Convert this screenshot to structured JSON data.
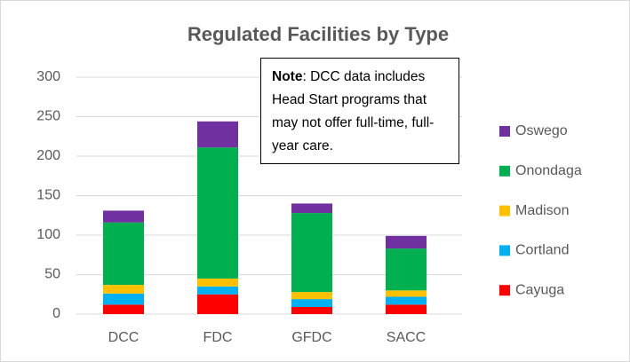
{
  "chart_data": {
    "type": "stacked_bar",
    "title": "Regulated Facilities by Type",
    "categories": [
      "DCC",
      "FDC",
      "GFDC",
      "SACC"
    ],
    "series": [
      {
        "name": "Cayuga",
        "color": "#ff0000",
        "values": [
          12,
          25,
          9,
          12
        ]
      },
      {
        "name": "Cortland",
        "color": "#00b0f0",
        "values": [
          14,
          10,
          10,
          10
        ]
      },
      {
        "name": "Madison",
        "color": "#ffc000",
        "values": [
          11,
          10,
          9,
          8
        ]
      },
      {
        "name": "Onondaga",
        "color": "#00b050",
        "values": [
          79,
          166,
          100,
          53
        ]
      },
      {
        "name": "Oswego",
        "color": "#7030a0",
        "values": [
          15,
          33,
          12,
          16
        ]
      }
    ],
    "ylim": [
      0,
      300
    ],
    "yticks": [
      0,
      50,
      100,
      150,
      200,
      250,
      300
    ],
    "grid": true,
    "legend": "right",
    "annotation": {
      "bold": "Note",
      "text": ": DCC data includes Head Start programs that may not offer full-time, full-year care."
    }
  }
}
